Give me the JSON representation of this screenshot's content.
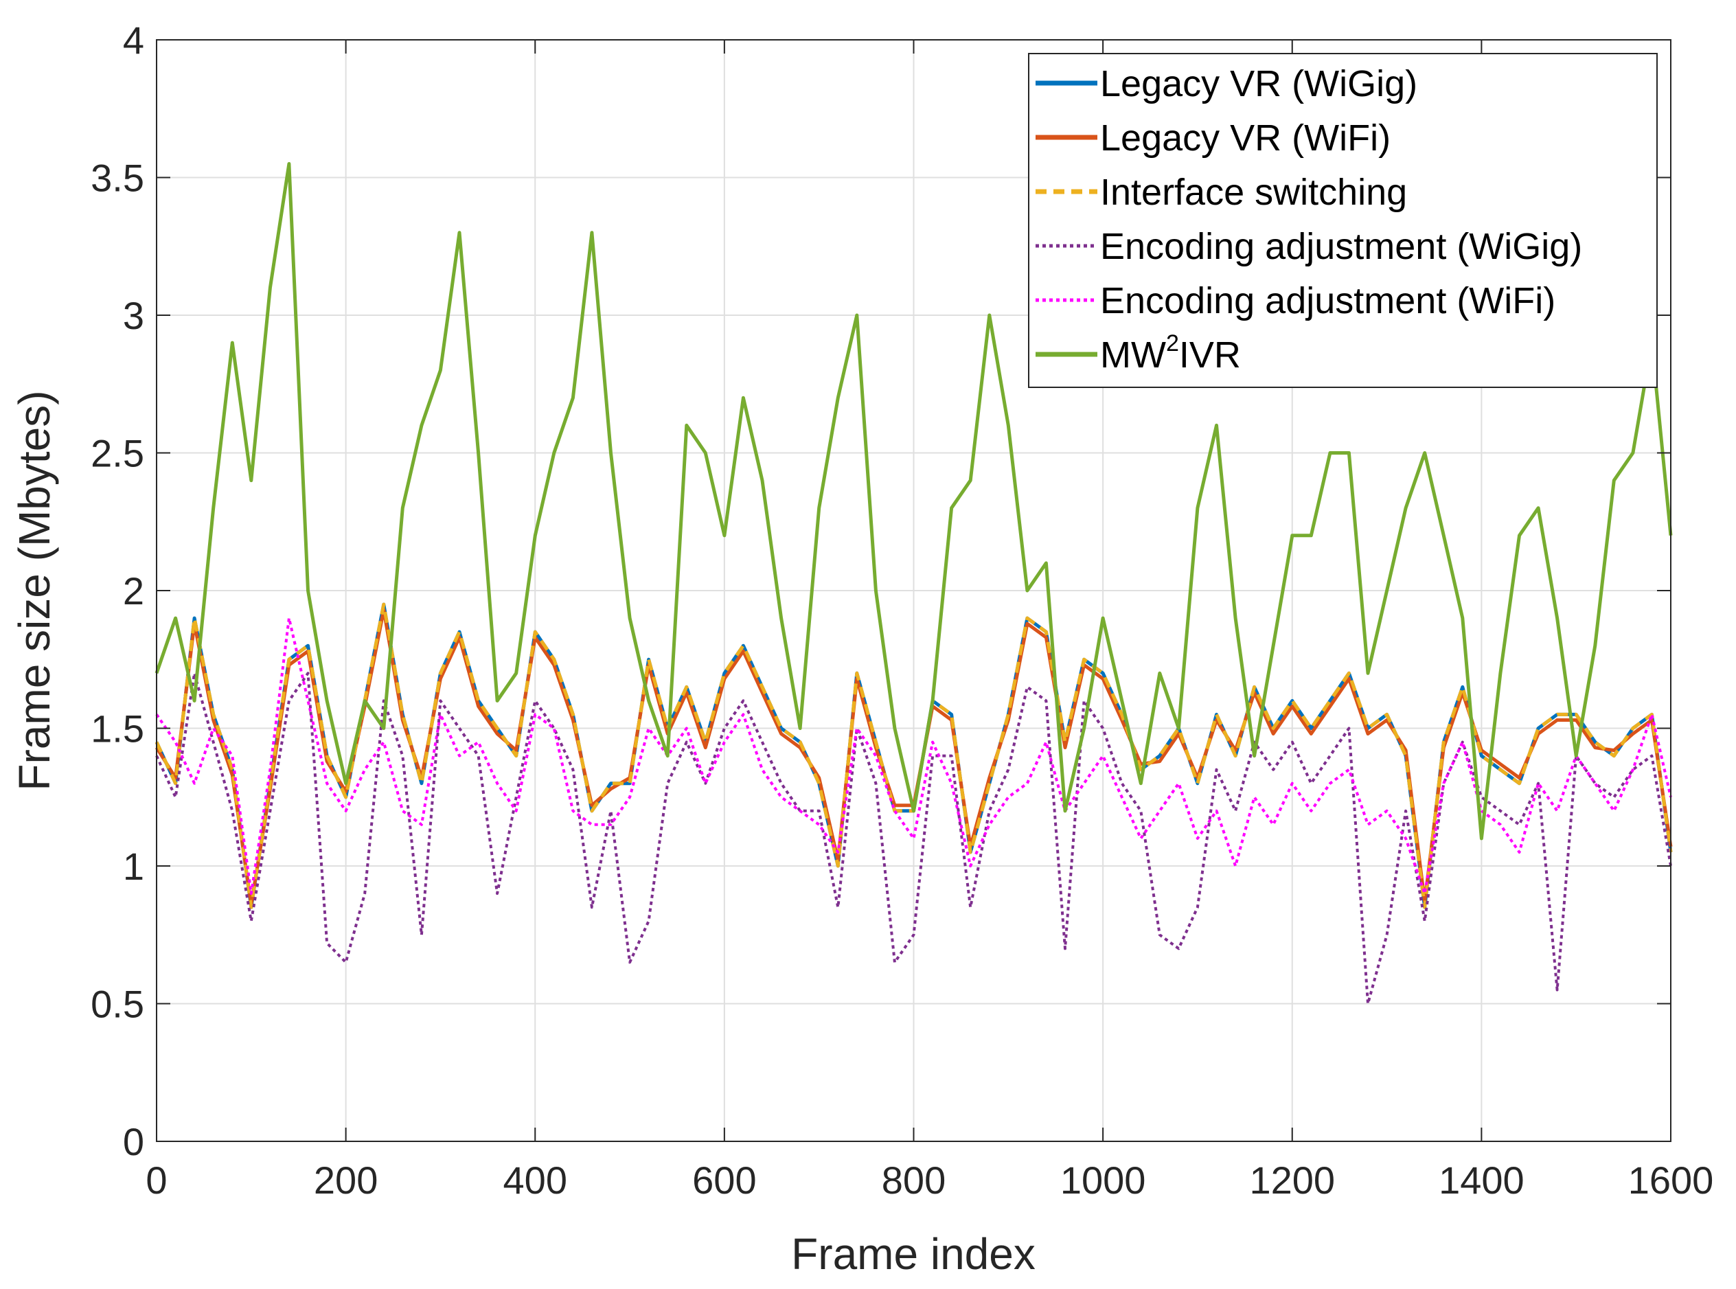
{
  "chart_data": {
    "type": "line",
    "title": "",
    "xlabel": "Frame index",
    "ylabel": "Frame size (Mbytes)",
    "xlim": [
      0,
      1600
    ],
    "ylim": [
      0,
      4
    ],
    "grid": true,
    "legend_position": "top-right",
    "xticks": [
      0,
      200,
      400,
      600,
      800,
      1000,
      1200,
      1400,
      1600
    ],
    "xtick_labels": [
      "0",
      "200",
      "400",
      "600",
      "800",
      "1000",
      "1200",
      "1400",
      "1600"
    ],
    "yticks": [
      0,
      0.5,
      1,
      1.5,
      2,
      2.5,
      3,
      3.5,
      4
    ],
    "ytick_labels": [
      "0",
      "0.5",
      "1",
      "1.5",
      "2",
      "2.5",
      "3",
      "3.5",
      "4"
    ],
    "x": [
      0,
      20,
      40,
      60,
      80,
      100,
      120,
      140,
      160,
      180,
      200,
      220,
      240,
      260,
      280,
      300,
      320,
      340,
      360,
      380,
      400,
      420,
      440,
      460,
      480,
      500,
      520,
      540,
      560,
      580,
      600,
      620,
      640,
      660,
      680,
      700,
      720,
      740,
      760,
      780,
      800,
      820,
      840,
      860,
      880,
      900,
      920,
      940,
      960,
      980,
      1000,
      1020,
      1040,
      1060,
      1080,
      1100,
      1120,
      1140,
      1160,
      1180,
      1200,
      1220,
      1240,
      1260,
      1280,
      1300,
      1320,
      1340,
      1360,
      1380,
      1400,
      1420,
      1440,
      1460,
      1480,
      1500,
      1520,
      1540,
      1560,
      1580,
      1600
    ],
    "series": [
      {
        "name": "Legacy VR (WiGig)",
        "color": "#0072BD",
        "dash": "solid",
        "values": [
          1.45,
          1.3,
          1.9,
          1.55,
          1.35,
          0.85,
          1.3,
          1.75,
          1.8,
          1.4,
          1.25,
          1.6,
          1.95,
          1.55,
          1.3,
          1.7,
          1.85,
          1.6,
          1.5,
          1.4,
          1.85,
          1.75,
          1.55,
          1.2,
          1.3,
          1.3,
          1.75,
          1.5,
          1.65,
          1.45,
          1.7,
          1.8,
          1.65,
          1.5,
          1.45,
          1.3,
          1.0,
          1.7,
          1.45,
          1.2,
          1.2,
          1.6,
          1.55,
          1.05,
          1.3,
          1.55,
          1.9,
          1.85,
          1.45,
          1.75,
          1.7,
          1.55,
          1.35,
          1.4,
          1.5,
          1.3,
          1.55,
          1.4,
          1.65,
          1.5,
          1.6,
          1.5,
          1.6,
          1.7,
          1.5,
          1.55,
          1.4,
          0.85,
          1.45,
          1.65,
          1.4,
          1.35,
          1.3,
          1.5,
          1.55,
          1.55,
          1.45,
          1.4,
          1.5,
          1.55,
          1.05
        ]
      },
      {
        "name": "Legacy VR (WiFi)",
        "color": "#D95319",
        "dash": "solid",
        "values": [
          1.43,
          1.32,
          1.88,
          1.53,
          1.33,
          0.86,
          1.28,
          1.73,
          1.78,
          1.38,
          1.27,
          1.58,
          1.93,
          1.53,
          1.32,
          1.68,
          1.83,
          1.58,
          1.48,
          1.42,
          1.83,
          1.73,
          1.53,
          1.22,
          1.28,
          1.32,
          1.73,
          1.48,
          1.63,
          1.43,
          1.68,
          1.78,
          1.63,
          1.48,
          1.43,
          1.32,
          1.02,
          1.68,
          1.43,
          1.22,
          1.22,
          1.58,
          1.53,
          1.07,
          1.32,
          1.53,
          1.88,
          1.83,
          1.43,
          1.73,
          1.68,
          1.53,
          1.37,
          1.38,
          1.48,
          1.32,
          1.53,
          1.42,
          1.63,
          1.48,
          1.58,
          1.48,
          1.58,
          1.68,
          1.48,
          1.53,
          1.42,
          0.87,
          1.43,
          1.63,
          1.42,
          1.37,
          1.32,
          1.48,
          1.53,
          1.53,
          1.43,
          1.42,
          1.48,
          1.53,
          1.07
        ]
      },
      {
        "name": "Interface switching",
        "color": "#EDB120",
        "dash": "dashed",
        "values": [
          1.45,
          1.3,
          1.9,
          1.55,
          1.35,
          0.85,
          1.3,
          1.75,
          1.8,
          1.4,
          1.25,
          1.6,
          1.95,
          1.55,
          1.3,
          1.7,
          1.85,
          1.6,
          1.5,
          1.4,
          1.85,
          1.75,
          1.55,
          1.2,
          1.3,
          1.3,
          1.75,
          1.5,
          1.65,
          1.45,
          1.7,
          1.8,
          1.65,
          1.5,
          1.45,
          1.3,
          1.0,
          1.7,
          1.45,
          1.2,
          1.2,
          1.6,
          1.55,
          1.05,
          1.3,
          1.55,
          1.9,
          1.85,
          1.45,
          1.75,
          1.7,
          1.55,
          1.35,
          1.4,
          1.5,
          1.3,
          1.55,
          1.4,
          1.65,
          1.5,
          1.6,
          1.5,
          1.6,
          1.7,
          1.5,
          1.55,
          1.4,
          0.85,
          1.45,
          1.65,
          1.4,
          1.35,
          1.3,
          1.5,
          1.55,
          1.55,
          1.45,
          1.4,
          1.5,
          1.55,
          1.05
        ]
      },
      {
        "name": "Encoding adjustment (WiGig)",
        "color": "#7E2F8E",
        "dash": "dotted",
        "values": [
          1.4,
          1.25,
          1.7,
          1.45,
          1.2,
          0.8,
          1.2,
          1.6,
          1.7,
          0.72,
          0.65,
          0.9,
          1.6,
          1.4,
          0.75,
          1.6,
          1.5,
          1.4,
          0.9,
          1.25,
          1.6,
          1.5,
          1.35,
          0.85,
          1.2,
          0.65,
          0.8,
          1.3,
          1.45,
          1.3,
          1.5,
          1.6,
          1.45,
          1.3,
          1.2,
          1.2,
          0.85,
          1.5,
          1.3,
          0.65,
          0.75,
          1.4,
          1.4,
          0.85,
          1.2,
          1.35,
          1.65,
          1.6,
          0.7,
          1.6,
          1.5,
          1.3,
          1.2,
          0.75,
          0.7,
          0.85,
          1.35,
          1.2,
          1.45,
          1.35,
          1.45,
          1.3,
          1.4,
          1.5,
          0.5,
          0.75,
          1.2,
          0.8,
          1.3,
          1.45,
          1.25,
          1.2,
          1.15,
          1.3,
          0.55,
          1.4,
          1.3,
          1.25,
          1.35,
          1.4,
          1.0
        ]
      },
      {
        "name": "Encoding adjustment (WiFi)",
        "color": "#FF00FF",
        "dash": "dotted",
        "values": [
          1.55,
          1.45,
          1.3,
          1.5,
          1.4,
          0.9,
          1.35,
          1.9,
          1.6,
          1.3,
          1.2,
          1.35,
          1.45,
          1.2,
          1.15,
          1.55,
          1.4,
          1.45,
          1.3,
          1.2,
          1.55,
          1.5,
          1.2,
          1.15,
          1.15,
          1.25,
          1.5,
          1.4,
          1.5,
          1.3,
          1.45,
          1.55,
          1.35,
          1.25,
          1.2,
          1.15,
          1.05,
          1.5,
          1.4,
          1.2,
          1.1,
          1.45,
          1.3,
          1.0,
          1.15,
          1.25,
          1.3,
          1.45,
          1.2,
          1.3,
          1.4,
          1.25,
          1.1,
          1.2,
          1.3,
          1.1,
          1.2,
          1.0,
          1.25,
          1.15,
          1.3,
          1.2,
          1.3,
          1.35,
          1.15,
          1.2,
          1.1,
          0.9,
          1.3,
          1.45,
          1.2,
          1.15,
          1.05,
          1.3,
          1.2,
          1.4,
          1.3,
          1.2,
          1.35,
          1.55,
          1.25
        ]
      },
      {
        "name": "MW²IVR",
        "color": "#77AC30",
        "dash": "solid",
        "values": [
          1.7,
          1.9,
          1.6,
          2.3,
          2.9,
          2.4,
          3.1,
          3.55,
          2.0,
          1.6,
          1.3,
          1.6,
          1.5,
          2.3,
          2.6,
          2.8,
          3.3,
          2.5,
          1.6,
          1.7,
          2.2,
          2.5,
          2.7,
          3.3,
          2.5,
          1.9,
          1.6,
          1.4,
          2.6,
          2.5,
          2.2,
          2.7,
          2.4,
          1.9,
          1.5,
          2.3,
          2.7,
          3.0,
          2.0,
          1.5,
          1.2,
          1.6,
          2.3,
          2.4,
          3.0,
          2.6,
          2.0,
          2.1,
          1.2,
          1.5,
          1.9,
          1.6,
          1.3,
          1.7,
          1.5,
          2.3,
          2.6,
          1.9,
          1.4,
          1.8,
          2.2,
          2.2,
          2.5,
          2.5,
          1.7,
          2.0,
          2.3,
          2.5,
          2.2,
          1.9,
          1.1,
          1.7,
          2.2,
          2.3,
          1.9,
          1.4,
          1.8,
          2.4,
          2.5,
          2.9,
          2.2
        ]
      }
    ]
  },
  "legend": {
    "entries": [
      "Legacy VR (WiGig)",
      "Legacy VR (WiFi)",
      "Interface switching",
      "Encoding adjustment (WiGig)",
      "Encoding adjustment (WiFi)"
    ],
    "last_entry_base": "MW",
    "last_entry_sup": "2",
    "last_entry_suffix": "IVR"
  },
  "colors": {
    "axis": "#262626",
    "grid": "#dfdfdf",
    "background": "#ffffff"
  }
}
